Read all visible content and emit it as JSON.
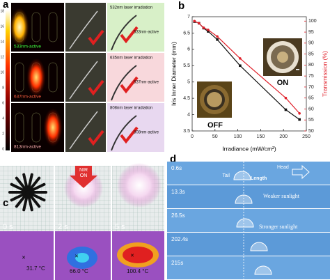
{
  "panels": {
    "a": {
      "label": "a",
      "colorbar_ticks": [
        "18",
        "16",
        "14",
        "12",
        "10",
        "8",
        "6",
        "4",
        "2",
        "0"
      ],
      "rows": [
        {
          "active": "533nm-active",
          "laser": "532nm laser irradiation",
          "schematic_label": "533nm-active"
        },
        {
          "active": "637nm-active",
          "laser": "635nm laser irradiation",
          "schematic_label": "637nm-active"
        },
        {
          "active": "813nm-active",
          "laser": "808nm laser irradiation",
          "schematic_label": "808nm-active"
        }
      ]
    },
    "b": {
      "label": "b",
      "inset_off": "OFF",
      "inset_on": "ON"
    },
    "c": {
      "label": "c",
      "arrow": [
        "NIR",
        "ON"
      ],
      "times": [
        "0 s",
        "2 s",
        "5 s"
      ],
      "temperatures": [
        "31.7 °C",
        "66.0 °C",
        "100.4 °C"
      ]
    },
    "d": {
      "label": "d",
      "times": [
        "0.6s",
        "13.3s",
        "26.5s",
        "202.4s",
        "215s"
      ],
      "tail": "Tail",
      "head": "Head",
      "length": "Length",
      "weaker": "Weaker sunlight",
      "stronger": "Stronger sunlight"
    }
  },
  "chart_data": {
    "type": "line",
    "xlabel": "Irradiance (mW/cm²)",
    "ylabel": "Iris Inner Diameter (mm)",
    "y2label": "Transmission (%)",
    "x": [
      5,
      15,
      25,
      35,
      55,
      105,
      205,
      235
    ],
    "series": [
      {
        "name": "Iris Inner Diameter",
        "color": "#111111",
        "values": [
          6.85,
          6.8,
          6.65,
          6.55,
          6.3,
          5.5,
          4.15,
          3.85
        ]
      },
      {
        "name": "Transmission",
        "color": "#e0202a",
        "axis": "y2",
        "values": [
          100,
          99,
          97,
          96,
          93,
          83,
          65,
          58
        ]
      }
    ],
    "xlim": [
      0,
      250
    ],
    "xticks": [
      0,
      50,
      100,
      150,
      200,
      250
    ],
    "ylim": [
      3.5,
      7.0
    ],
    "yticks": [
      3.5,
      4.0,
      4.5,
      5.0,
      5.5,
      6.0,
      6.5,
      7.0
    ],
    "y2lim": [
      50,
      102
    ],
    "y2ticks": [
      50,
      55,
      60,
      65,
      70,
      75,
      80,
      85,
      90,
      95,
      100
    ]
  }
}
